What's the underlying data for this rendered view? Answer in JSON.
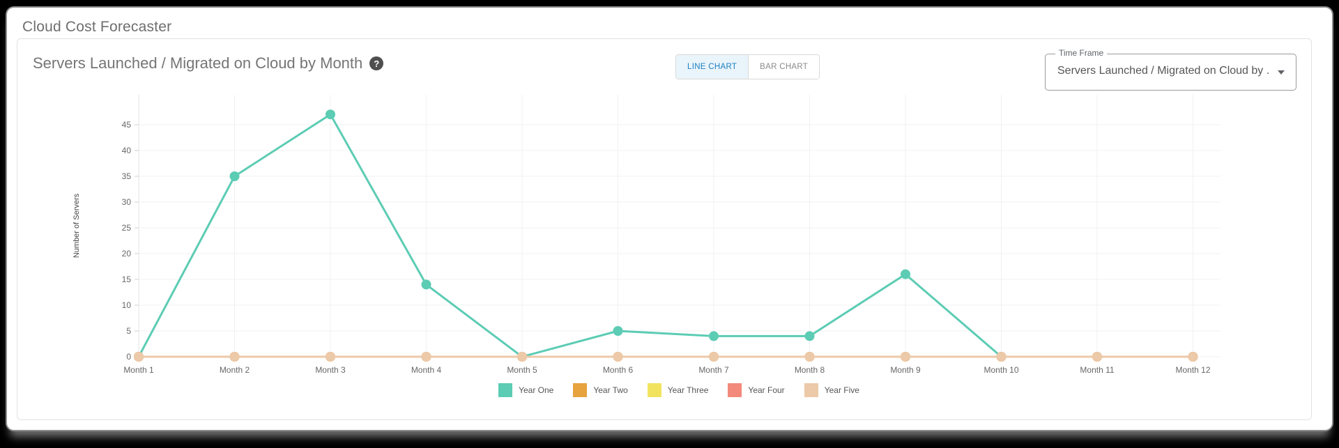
{
  "page": {
    "title": "Cloud Cost Forecaster"
  },
  "card": {
    "title": "Servers Launched / Migrated on Cloud by Month",
    "toggle": {
      "options": [
        "LINE CHART",
        "BAR CHART"
      ],
      "active": "LINE CHART"
    },
    "time_frame": {
      "label": "Time Frame",
      "value": "Servers Launched / Migrated on Cloud by ..."
    }
  },
  "icons": {
    "help": "?"
  },
  "colors": {
    "accent_blue": "#1b7fc0",
    "active_toggle_bg": "#eaf4fb",
    "title_gray": "#757575",
    "tick_gray": "#666666",
    "gridline": "#f1f1f1",
    "axis_line": "#e3e3e3"
  },
  "chart_data": {
    "type": "line",
    "title": "Servers Launched / Migrated on Cloud by Month",
    "xlabel": "",
    "ylabel": "Number of Servers",
    "categories": [
      "Month 1",
      "Month 2",
      "Month 3",
      "Month 4",
      "Month 5",
      "Month 6",
      "Month 7",
      "Month 8",
      "Month 9",
      "Month 10",
      "Month 11",
      "Month 12"
    ],
    "y_ticks": [
      0,
      5,
      10,
      15,
      20,
      25,
      30,
      35,
      40,
      45
    ],
    "ylim": [
      0,
      50
    ],
    "grid": true,
    "legend_position": "bottom",
    "series": [
      {
        "name": "Year One",
        "color": "#5cccb4",
        "values": [
          0,
          35,
          47,
          14,
          0,
          5,
          4,
          4,
          16,
          0,
          0,
          0
        ]
      },
      {
        "name": "Year Two",
        "color": "#e7a33e",
        "values": [
          0,
          0,
          0,
          0,
          0,
          0,
          0,
          0,
          0,
          0,
          0,
          0
        ]
      },
      {
        "name": "Year Three",
        "color": "#f2e35f",
        "values": [
          0,
          0,
          0,
          0,
          0,
          0,
          0,
          0,
          0,
          0,
          0,
          0
        ]
      },
      {
        "name": "Year Four",
        "color": "#f2897a",
        "values": [
          0,
          0,
          0,
          0,
          0,
          0,
          0,
          0,
          0,
          0,
          0,
          0
        ]
      },
      {
        "name": "Year Five",
        "color": "#ecc9a8",
        "values": [
          0,
          0,
          0,
          0,
          0,
          0,
          0,
          0,
          0,
          0,
          0,
          0
        ]
      }
    ]
  }
}
